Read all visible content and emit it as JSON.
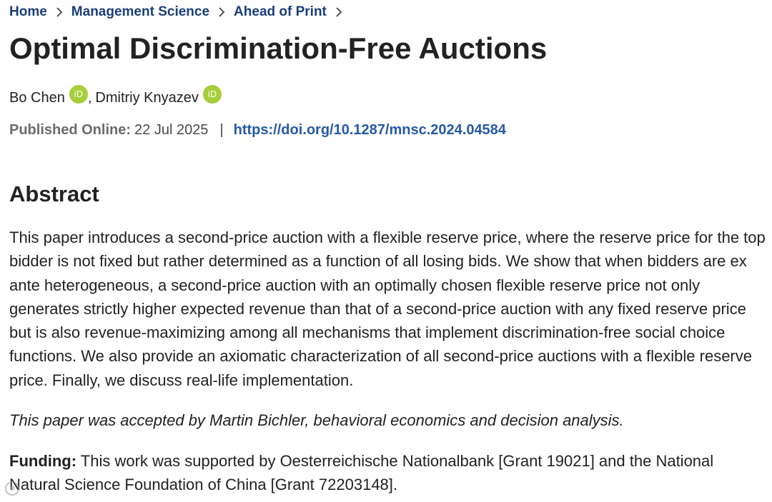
{
  "breadcrumb": {
    "items": [
      {
        "label": "Home"
      },
      {
        "label": "Management Science"
      },
      {
        "label": "Ahead of Print"
      }
    ]
  },
  "article": {
    "title": "Optimal Discrimination-Free Auctions",
    "authors": [
      {
        "name": "Bo Chen",
        "orcid_icon": "iD"
      },
      {
        "name": "Dmitriy Knyazev",
        "orcid_icon": "iD"
      }
    ],
    "author_separator": ",",
    "published_label": "Published Online:",
    "published_date": "22 Jul 2025",
    "meta_divider": "|",
    "doi": "https://doi.org/10.1287/mnsc.2024.04584"
  },
  "abstract": {
    "heading": "Abstract",
    "text": "This paper introduces a second-price auction with a flexible reserve price, where the reserve price for the top bidder is not fixed but rather determined as a function of all losing bids. We show that when bidders are ex ante heterogeneous, a second-price auction with an optimally chosen flexible reserve price not only generates strictly higher expected revenue than that of a second-price auction with any fixed reserve price but is also revenue-maximizing among all mechanisms that implement discrimination-free social choice functions. We also provide an axiomatic characterization of all second-price auctions with a flexible reserve price. Finally, we discuss real-life implementation.",
    "accepted_note": "This paper was accepted by Martin Bichler, behavioral economics and decision analysis.",
    "funding_label": "Funding:",
    "funding_text": " This work was supported by Oesterreichische Nationalbank [Grant 19021] and the National Natural Science Foundation of China [Grant 72203148]."
  },
  "colors": {
    "link": "#1b3e7a",
    "doi": "#2659a6",
    "orcid": "#a6ce39",
    "text": "#222222"
  },
  "icons": {
    "breadcrumb_separator": "chevron-right-icon",
    "orcid": "orcid-icon"
  }
}
